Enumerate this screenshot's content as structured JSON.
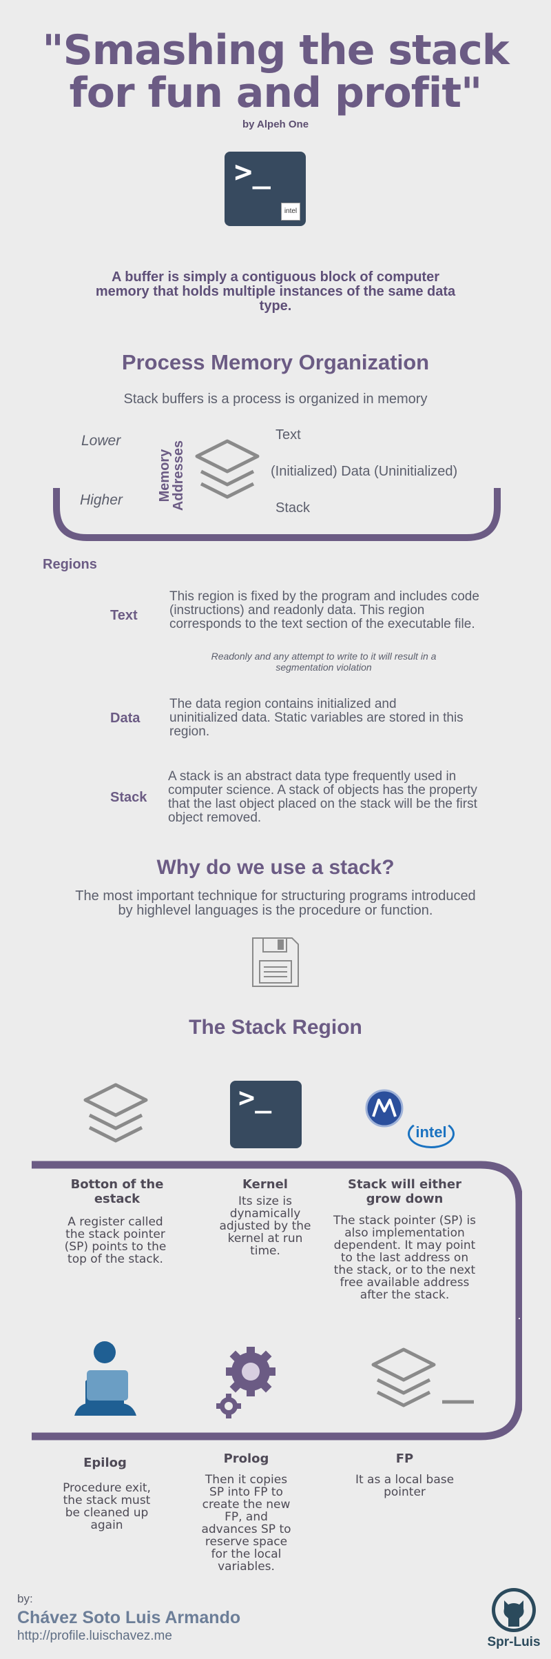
{
  "header": {
    "title_line1": "\"Smashing the stack",
    "title_line2": "for fun and profit\"",
    "byline": "by Alpeh One",
    "terminal_prompt": ">_",
    "intel_badge": "intel"
  },
  "intro": "A buffer is simply a contiguous block of computer memory that holds multiple instances of the same data type.",
  "memory": {
    "title": "Process Memory Organization",
    "subtitle": "Stack buffers is a process is organized in memory",
    "lower": "Lower",
    "higher": "Higher",
    "axis_label": "Memory Addresses",
    "layers": [
      "Text",
      "(Initialized) Data (Uninitialized)",
      "Stack"
    ]
  },
  "regions": {
    "heading": "Regions",
    "items": [
      {
        "label": "Text",
        "text": "This region is fixed by the program and includes code (instructions) and readonly data. This region corresponds to the text section of the executable file.",
        "note": "Readonly and any attempt to write to it will result in a segmentation violation"
      },
      {
        "label": "Data",
        "text": "The data region contains initialized and uninitialized data. Static variables are stored in this region."
      },
      {
        "label": "Stack",
        "text": "A stack is an abstract data type frequently used in computer science. A stack of objects has the property that the last object placed on the stack will be the first object removed."
      }
    ]
  },
  "why": {
    "title": "Why do we use a stack?",
    "text": "The most important technique for structuring programs introduced by highlevel languages is the procedure or function."
  },
  "stack_region": {
    "title": "The Stack Region",
    "terminal_prompt": ">_",
    "intel_logo": "intel",
    "cards_top": [
      {
        "title": "Botton of the estack",
        "text": "A register called the stack pointer (SP) points to the top of the stack."
      },
      {
        "title": "Kernel",
        "text": "Its size is dynamically adjusted by the kernel at run time."
      },
      {
        "title": "Stack will either grow down",
        "text": "The stack pointer (SP) is also implementation dependent. It may point to the last address on the stack, or to the next free available address after the stack."
      }
    ],
    "cards_bottom": [
      {
        "title": "Epilog",
        "text": "Procedure exit, the stack must be cleaned up again"
      },
      {
        "title": "Prolog",
        "text": "Then it copies SP into FP to create the new FP, and advances SP to reserve space for the local variables."
      },
      {
        "title": "FP",
        "text": "It as a local base pointer"
      }
    ]
  },
  "footer": {
    "by": "by:",
    "name": "Chávez Soto Luis Armando",
    "url": "http://profile.luischavez.me",
    "github_user": "Spr-Luis"
  },
  "colors": {
    "purple": "#6b5b84",
    "terminal": "#374a5f",
    "background": "#ececec",
    "blue_person": "#1f5f93"
  }
}
